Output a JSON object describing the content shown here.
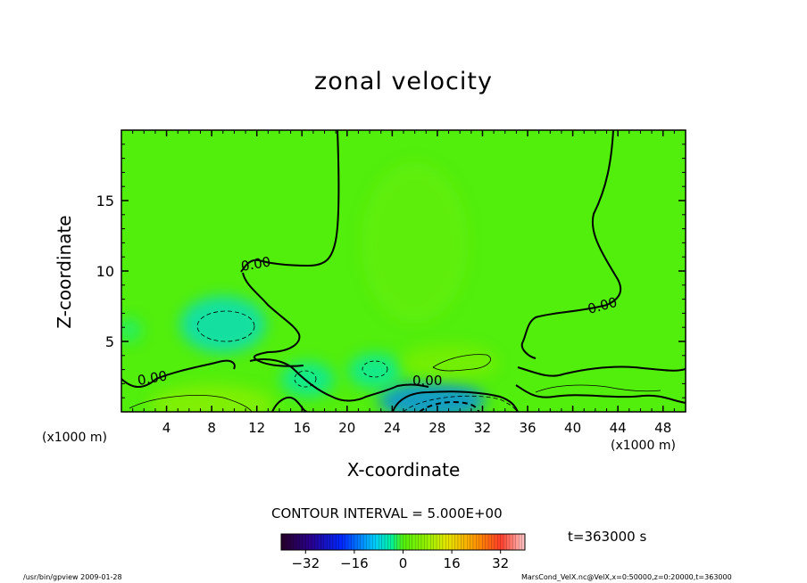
{
  "chart_data": {
    "type": "heatmap",
    "title": "zonal velocity",
    "xlabel": "X-coordinate",
    "ylabel": "Z-coordinate",
    "x_unit_left": "(x1000 m)",
    "x_unit_right": "(x1000 m)",
    "xlim": [
      0,
      50
    ],
    "ylim": [
      0,
      20
    ],
    "x_ticks": [
      4,
      8,
      12,
      16,
      20,
      24,
      28,
      32,
      36,
      40,
      44,
      48
    ],
    "y_ticks": [
      5,
      10,
      15
    ],
    "contour_label": "0.00",
    "contour_interval_text": "CONTOUR INTERVAL = 5.000E+00",
    "colorbar": {
      "min": -40,
      "max": 40,
      "ticks": [
        -32,
        -16,
        0,
        16,
        32
      ],
      "tick_labels": [
        "−32",
        "−16",
        "0",
        "16",
        "32"
      ]
    },
    "features": [
      {
        "kind": "negative",
        "x": 27.5,
        "z": 0.8,
        "value": -14
      },
      {
        "kind": "negative",
        "x": 9,
        "z": 6.2,
        "value": -7
      },
      {
        "kind": "negative",
        "x": 16.5,
        "z": 2.3,
        "value": -5
      },
      {
        "kind": "negative",
        "x": 22.5,
        "z": 2.9,
        "value": -5
      },
      {
        "kind": "negative",
        "x": 0.7,
        "z": 5.8,
        "value": -3
      },
      {
        "kind": "positive",
        "x": 29,
        "z": 3.5,
        "value": 5
      },
      {
        "kind": "positive",
        "x": 8,
        "z": 0.5,
        "value": 7
      },
      {
        "kind": "positive",
        "x": 26,
        "z": 12,
        "value": 2
      }
    ],
    "grid": false
  },
  "annotations": {
    "time": "t=363000 s",
    "footer_left": "/usr/bin/gpview   2009-01-28",
    "footer_right": "MarsCond_VelX.nc@VelX,x=0:50000,z=0:20000,t=363000"
  }
}
